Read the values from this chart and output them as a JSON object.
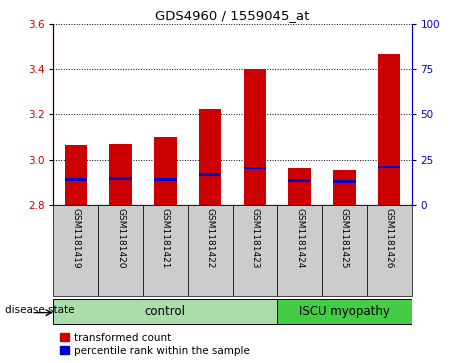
{
  "title": "GDS4960 / 1559045_at",
  "samples": [
    "GSM1181419",
    "GSM1181420",
    "GSM1181421",
    "GSM1181422",
    "GSM1181423",
    "GSM1181424",
    "GSM1181425",
    "GSM1181426"
  ],
  "transformed_count": [
    3.065,
    3.07,
    3.1,
    3.225,
    3.4,
    2.965,
    2.955,
    3.465
  ],
  "percentile_rank": [
    14.0,
    14.5,
    14.0,
    17.0,
    20.5,
    13.5,
    13.0,
    21.0
  ],
  "bar_bottom": 2.8,
  "ylim": [
    2.8,
    3.6
  ],
  "y2lim": [
    0,
    100
  ],
  "yticks_left": [
    2.8,
    3.0,
    3.2,
    3.4,
    3.6
  ],
  "yticks_right": [
    0,
    25,
    50,
    75,
    100
  ],
  "bar_color": "#cc0000",
  "blue_color": "#0000cc",
  "control_samples": 5,
  "control_label": "control",
  "disease_label": "ISCU myopathy",
  "group_label": "disease state",
  "control_bg": "#aaddaa",
  "disease_bg": "#44cc44",
  "tick_bg": "#cccccc",
  "legend_red": "transformed count",
  "legend_blue": "percentile rank within the sample",
  "bar_width": 0.5
}
